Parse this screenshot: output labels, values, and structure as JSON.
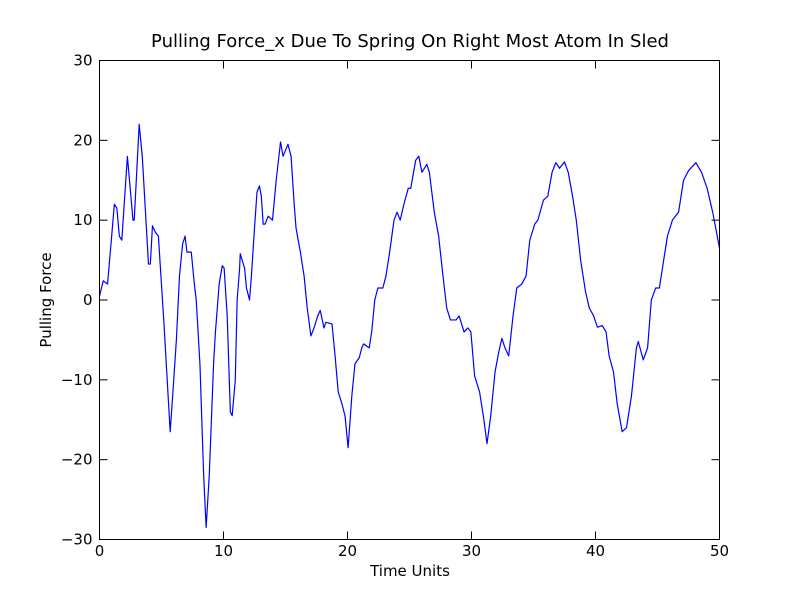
{
  "chart_data": {
    "type": "line",
    "title": "Pulling Force_x Due To Spring On Right Most Atom In Sled",
    "x_label": "Time Units",
    "y_label": "Pulling Force",
    "xlim": [
      0,
      50
    ],
    "ylim": [
      -30,
      30
    ],
    "xticks": [
      0,
      10,
      20,
      30,
      40,
      50
    ],
    "yticks": [
      {
        "value": -30,
        "label": "−30"
      },
      {
        "value": -20,
        "label": "−20"
      },
      {
        "value": -10,
        "label": "−10"
      },
      0,
      10,
      20,
      30
    ],
    "series": [
      {
        "color": "#0000ff",
        "x": [
          0,
          0.3,
          0.65,
          1.2,
          1.4,
          1.6,
          1.8,
          2.25,
          2.7,
          2.8,
          3.2,
          3.45,
          3.95,
          4.1,
          4.27,
          4.5,
          4.75,
          5.2,
          5.7,
          5.9,
          6.2,
          6.45,
          6.7,
          6.9,
          7.05,
          7.4,
          7.65,
          7.8,
          8.1,
          8.4,
          8.6,
          8.85,
          9.2,
          9.35,
          9.65,
          9.9,
          10.05,
          10.3,
          10.55,
          10.7,
          10.95,
          11.1,
          11.3,
          11.35,
          11.5,
          11.7,
          11.85,
          12.1,
          12.25,
          12.5,
          12.7,
          12.9,
          13.05,
          13.2,
          13.35,
          13.6,
          13.95,
          14.25,
          14.6,
          14.8,
          15.2,
          15.45,
          15.7,
          15.85,
          16.2,
          16.5,
          16.75,
          17.05,
          17.3,
          17.6,
          17.8,
          18.1,
          18.25,
          18.75,
          19,
          19.25,
          19.55,
          19.8,
          20.05,
          20.35,
          20.6,
          20.95,
          21.15,
          21.3,
          21.75,
          21.95,
          22.2,
          22.45,
          22.85,
          23.1,
          23.4,
          23.75,
          24,
          24.25,
          24.55,
          24.9,
          25.1,
          25.5,
          25.75,
          26,
          26.4,
          26.6,
          27,
          27.35,
          27.7,
          28,
          28.3,
          28.75,
          29,
          29.4,
          29.7,
          29.95,
          30.25,
          30.65,
          31,
          31.25,
          31.55,
          31.9,
          32.2,
          32.45,
          32.7,
          33,
          33.35,
          33.65,
          34.05,
          34.4,
          34.7,
          35.1,
          35.35,
          35.8,
          36.15,
          36.5,
          36.8,
          37.1,
          37.5,
          37.8,
          38.15,
          38.45,
          38.8,
          39.2,
          39.5,
          39.85,
          40.15,
          40.55,
          40.85,
          41.1,
          41.45,
          41.75,
          42.15,
          42.5,
          42.9,
          43.3,
          43.45,
          43.85,
          44.2,
          44.5,
          44.85,
          45.15,
          45.5,
          45.8,
          46.2,
          46.7,
          47.1,
          47.5,
          48.1,
          48.55,
          49,
          49.45,
          50
        ],
        "values": [
          0.5,
          2.4,
          2,
          12,
          11.5,
          8,
          7.5,
          18,
          10,
          10,
          22,
          18,
          4.5,
          4.5,
          9.3,
          8.5,
          8,
          -3,
          -16.5,
          -12,
          -5,
          3,
          7,
          8,
          6,
          6,
          2,
          0,
          -8,
          -22,
          -28.5,
          -22,
          -8,
          -4,
          2,
          4.3,
          4,
          -2,
          -14,
          -14.5,
          -10,
          0,
          4,
          5.8,
          5,
          4,
          1.5,
          0,
          3,
          9,
          13.5,
          14.3,
          13,
          9.5,
          9.5,
          10.5,
          10,
          15,
          19.8,
          18,
          19.5,
          18,
          12,
          9,
          6,
          3,
          -1,
          -4.5,
          -3.5,
          -2,
          -1.3,
          -3.5,
          -2.8,
          -3,
          -7,
          -11.5,
          -13,
          -14.5,
          -18.5,
          -12,
          -8,
          -7.2,
          -6,
          -5.5,
          -6,
          -4,
          0,
          1.5,
          1.5,
          3,
          6,
          10,
          11,
          10,
          12,
          14,
          14,
          17.5,
          18,
          16,
          17,
          16,
          11,
          8,
          3,
          -1,
          -2.5,
          -2.5,
          -2,
          -4,
          -3.5,
          -4,
          -9.5,
          -11.5,
          -15,
          -18,
          -14.5,
          -9,
          -6.5,
          -4.8,
          -6,
          -7,
          -2,
          1.5,
          2,
          3,
          7.5,
          9.5,
          10,
          12.5,
          13,
          16,
          17.2,
          16.5,
          17.3,
          16,
          13,
          10,
          5,
          1,
          -1,
          -2,
          -3.4,
          -3.2,
          -4,
          -7,
          -9,
          -13,
          -16.5,
          -16,
          -12,
          -6,
          -5.2,
          -7.5,
          -6,
          0,
          1.5,
          1.5,
          5,
          8,
          10,
          11,
          15,
          16.2,
          17.2,
          16,
          14,
          11,
          6.5
        ]
      }
    ]
  }
}
